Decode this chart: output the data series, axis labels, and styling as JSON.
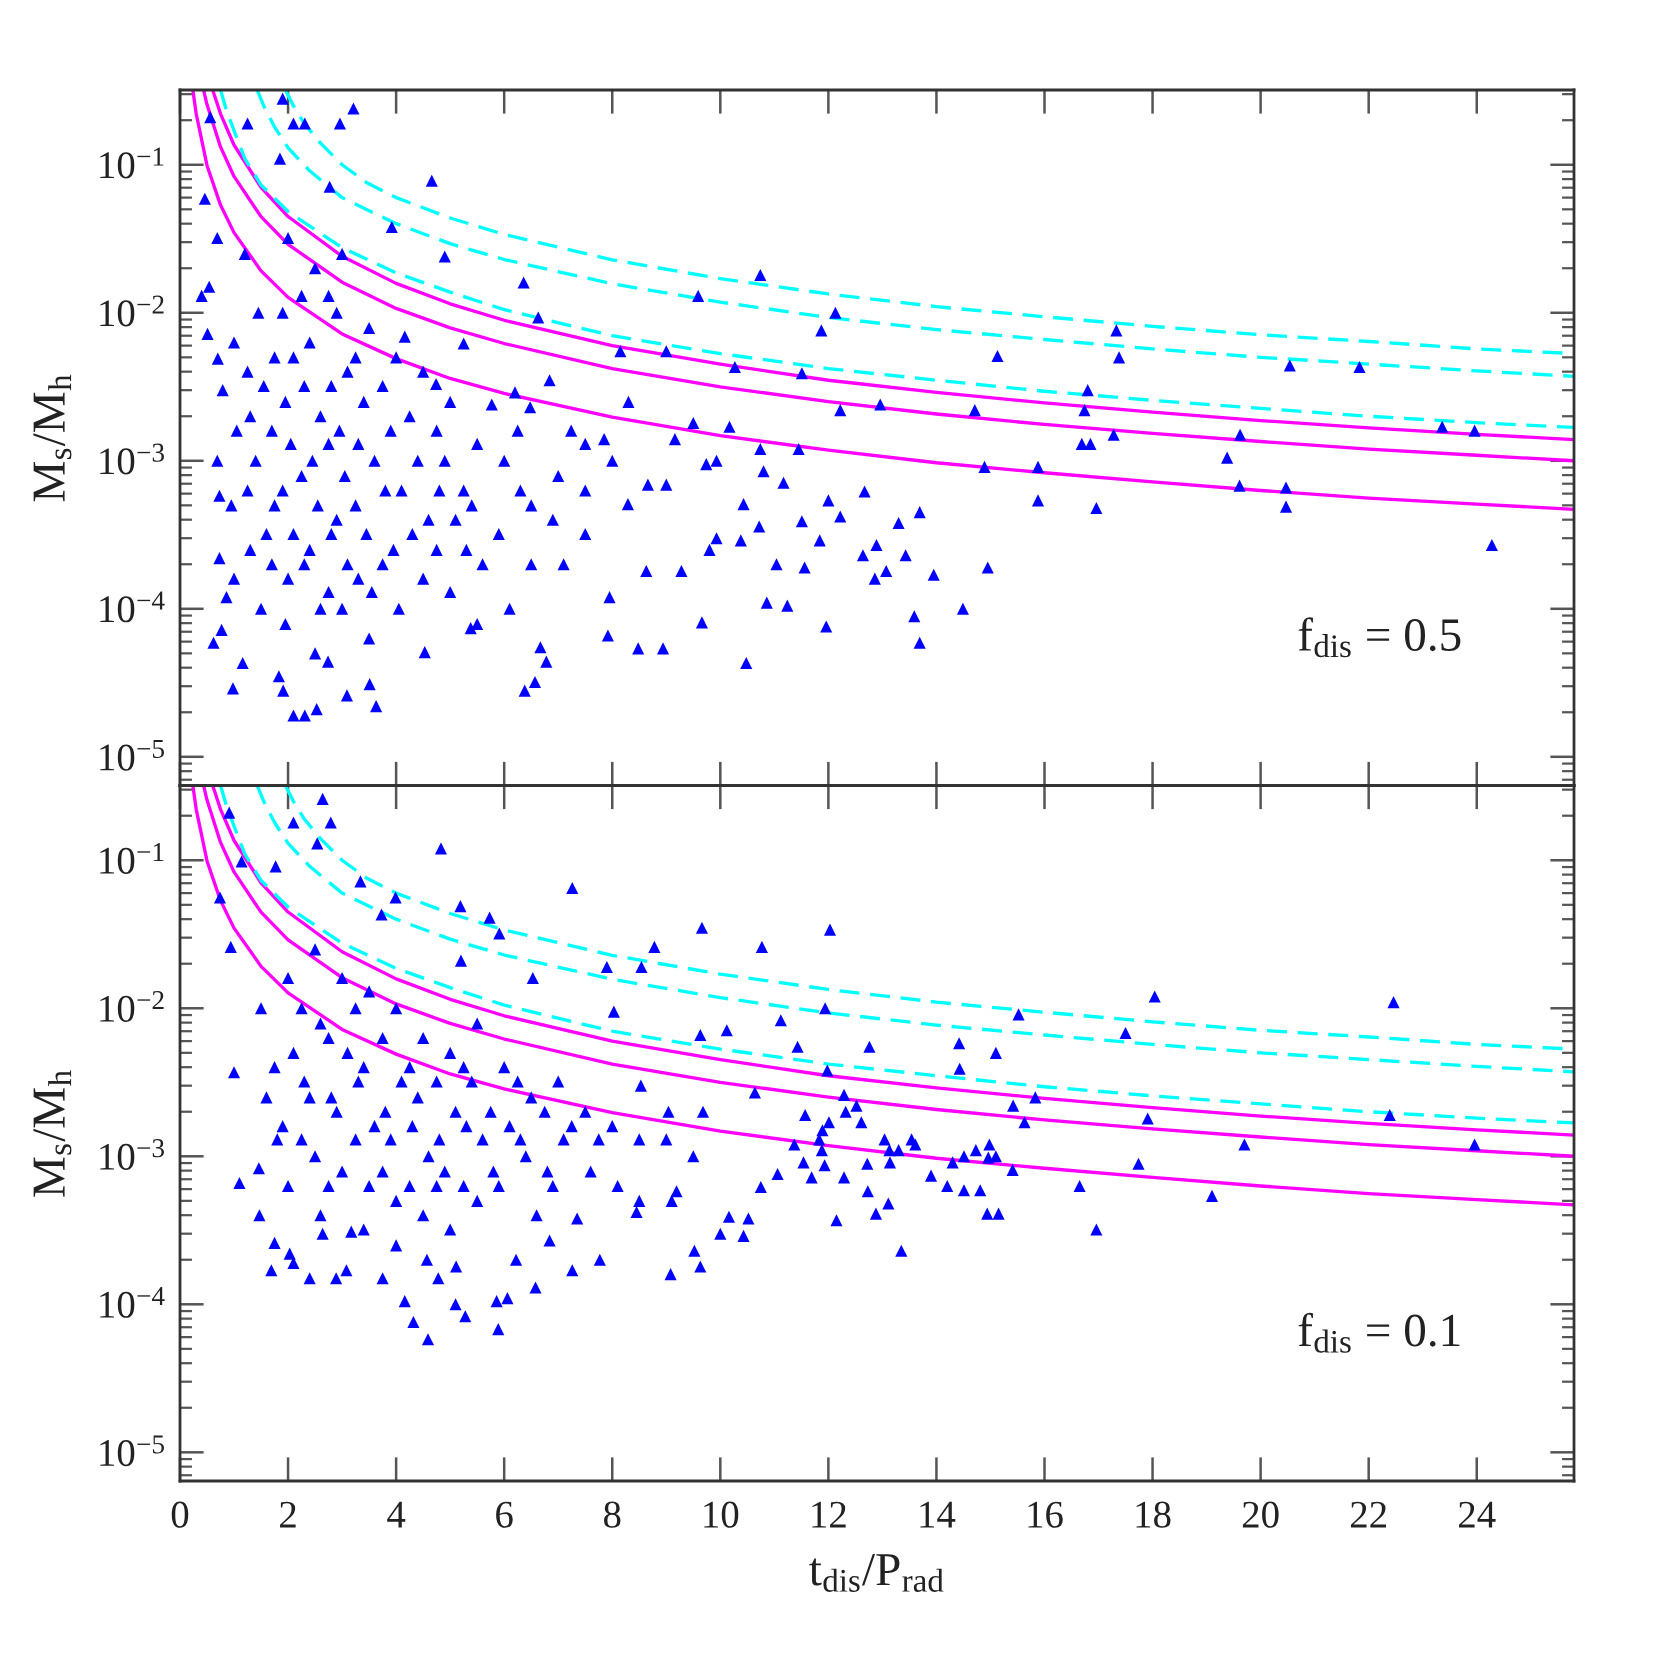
{
  "chart_data": [
    {
      "type": "scatter",
      "ylabel": "M$_{s}$/M$_{h}$",
      "annotations": [
        "f$_{dis}$ = 0.5"
      ],
      "xlim": [
        0,
        25.8
      ],
      "ylim": [
        6.4e-06,
        0.32
      ],
      "xticks": [
        0,
        2,
        4,
        6,
        8,
        10,
        12,
        14,
        16,
        18,
        20,
        22,
        24
      ],
      "yticks": [
        {
          "value": 1e-05,
          "label": "10$^{−5}$"
        },
        {
          "value": 0.0001,
          "label": "10$^{−4}$"
        },
        {
          "value": 0.001,
          "label": "10$^{−3}$"
        },
        {
          "value": 0.01,
          "label": "10$^{−2}$"
        },
        {
          "value": 0.1,
          "label": "10$^{−1}$"
        }
      ],
      "log": "y",
      "tick_labels": "y",
      "series": [
        {
          "color": "#0000ff",
          "marker": "triangle",
          "x": [
            12.13,
            11.87,
            11.51,
            12.22,
            12.96,
            15.13,
            14.71,
            17.33,
            17.38,
            16.8,
            16.74,
            17.28,
            16.69,
            16.85,
            20.54,
            21.83,
            23.36,
            23.96,
            19.62,
            19.38,
            19.61,
            20.47,
            20.47,
            24.28,
            14.89,
            15.88,
            15.88,
            16.96,
            12.0,
            12.67,
            12.22,
            11.51,
            11.84,
            12.89,
            12.64,
            13.3,
            13.69,
            13.43,
            13.07,
            12.86,
            13.95,
            14.95,
            11.56,
            13.59,
            13.69,
            14.49,
            11.96,
            11.45,
            1.9,
            3.21,
            2.1,
            2.31,
            2.96,
            0.56,
            1.25,
            4.66,
            2.77,
            1.85,
            0.46,
            0.4,
            0.51,
            4.9,
            3.92,
            6.36,
            6.63,
            10.74,
            9.59,
            10.27,
            9.0,
            8.3,
            10.17,
            9.5,
            10.74,
            8.15,
            6.84,
            6.2,
            5.25,
            4.16,
            4.74,
            5.77,
            6.48,
            7.24,
            7.85,
            9.16,
            9.74,
            9.93,
            10.8,
            11.17,
            10.43,
            10.72,
            10.38,
            11.04,
            10.86,
            11.24,
            10.48,
            9.66,
            8.94,
            8.48,
            9.28,
            9.93,
            9.8,
            8.63,
            9.0,
            8.29,
            8.66,
            7.95,
            7.92,
            6.78,
            6.38,
            6.57,
            6.67,
            5.38,
            4.53,
            3.63,
            3.51,
            3.09,
            2.74,
            2.53,
            2.31,
            2.1,
            1.91,
            1.83,
            1.16,
            0.98,
            0.62,
            0.77,
            0.86,
            0.73,
            0.69,
            0.73,
            0.79,
            0.7,
            0.69,
            0.54,
            1.45,
            1.55,
            1.4,
            1.6,
            1.5,
            2.0,
            1.9,
            2.1,
            1.95,
            2.05,
            1.9,
            2.1,
            2.0,
            1.95,
            2.5,
            2.4,
            2.6,
            2.45,
            2.55,
            2.4,
            2.6,
            2.5,
            3.0,
            2.9,
            3.1,
            2.95,
            3.05,
            2.9,
            3.1,
            3.0,
            3.5,
            3.4,
            3.6,
            3.45,
            3.55,
            3.5,
            4.0,
            3.9,
            4.1,
            3.95,
            4.05,
            4.5,
            4.4,
            4.6,
            4.5,
            5.0,
            4.9,
            5.1,
            5.0,
            5.5,
            5.4,
            5.6,
            6.0,
            5.9,
            6.1,
            7.0,
            6.9,
            7.1,
            1.0,
            1.05,
            0.95,
            1.0,
            1.2,
            6.5,
            7.5,
            8.0,
            5.5,
            1.25,
            1.3,
            1.25,
            1.3,
            1.75,
            1.7,
            1.75,
            1.7,
            2.25,
            2.3,
            2.25,
            2.3,
            2.75,
            2.8,
            2.75,
            2.8,
            2.75,
            3.25,
            3.3,
            3.25,
            3.3,
            3.75,
            3.8,
            3.75,
            4.25,
            4.3,
            4.75,
            4.8,
            4.75,
            5.25,
            5.3,
            6.25,
            6.3,
            6.5,
            7.5,
            7.5
          ],
          "values": [
            0.01,
            0.0076,
            0.0039,
            0.0022,
            0.0024,
            0.0051,
            0.0022,
            0.0076,
            0.005,
            0.003,
            0.0022,
            0.0015,
            0.0013,
            0.0013,
            0.0044,
            0.0043,
            0.0017,
            0.0016,
            0.0015,
            0.00105,
            0.00068,
            0.00066,
            0.00049,
            0.00027,
            0.00091,
            0.00091,
            0.00054,
            0.00048,
            0.00054,
            0.00062,
            0.00042,
            0.00039,
            0.00029,
            0.00027,
            0.00023,
            0.00038,
            0.00045,
            0.00023,
            0.00018,
            0.00016,
            0.00017,
            0.00019,
            0.00019,
            8.9e-05,
            5.9e-05,
            0.0001,
            7.6e-05,
            0.0012,
            0.28,
            0.24,
            0.19,
            0.19,
            0.19,
            0.21,
            0.19,
            0.078,
            0.071,
            0.11,
            0.059,
            0.013,
            0.0072,
            0.024,
            0.038,
            0.016,
            0.0093,
            0.018,
            0.013,
            0.0043,
            0.0055,
            0.0025,
            0.0017,
            0.0018,
            0.0012,
            0.0055,
            0.0035,
            0.0029,
            0.0062,
            0.0069,
            0.0033,
            0.0024,
            0.0023,
            0.0016,
            0.0014,
            0.0014,
            0.00095,
            0.001,
            0.00085,
            0.00071,
            0.00051,
            0.00036,
            0.00029,
            0.0002,
            0.00011,
            0.000105,
            4.3e-05,
            8.1e-05,
            5.4e-05,
            5.4e-05,
            0.00018,
            0.0003,
            0.00025,
            0.00018,
            0.00069,
            0.00051,
            0.00069,
            0.00012,
            6.6e-05,
            4.4e-05,
            2.8e-05,
            3.2e-05,
            5.5e-05,
            7.4e-05,
            5.1e-05,
            2.2e-05,
            3.1e-05,
            2.6e-05,
            4.4e-05,
            2.1e-05,
            1.9e-05,
            1.9e-05,
            2.8e-05,
            3.5e-05,
            4.3e-05,
            2.9e-05,
            5.9e-05,
            7.2e-05,
            0.00012,
            0.00022,
            0.001,
            0.00058,
            0.003,
            0.0049,
            0.032,
            0.015,
            0.01,
            0.0032,
            0.001,
            0.00032,
            0.0001,
            0.032,
            0.01,
            0.005,
            0.0025,
            0.0013,
            0.00063,
            0.00032,
            0.00016,
            7.9e-05,
            0.02,
            0.0063,
            0.002,
            0.001,
            0.0005,
            0.00025,
            0.0001,
            5e-05,
            0.025,
            0.01,
            0.004,
            0.0016,
            0.00079,
            0.0004,
            0.0002,
            0.0001,
            0.0079,
            0.0025,
            0.001,
            0.00032,
            0.00013,
            6.3e-05,
            0.005,
            0.0016,
            0.00063,
            0.00025,
            0.0001,
            0.004,
            0.001,
            0.0004,
            0.00016,
            0.0025,
            0.001,
            0.0004,
            0.00013,
            0.0013,
            0.0005,
            0.0002,
            0.001,
            0.00032,
            0.0001,
            0.00079,
            0.0004,
            0.0002,
            0.0063,
            0.0016,
            0.0005,
            0.00016,
            0.025,
            0.0005,
            0.00032,
            0.001,
            7.9e-05,
            0.004,
            0.002,
            0.00063,
            0.00025,
            0.005,
            0.0016,
            0.0005,
            0.0002,
            0.013,
            0.0032,
            0.00079,
            0.0002,
            0.013,
            0.0032,
            0.0013,
            0.00032,
            0.00013,
            0.005,
            0.0013,
            0.0005,
            0.00016,
            0.0032,
            0.00063,
            0.0002,
            0.002,
            0.00032,
            0.0016,
            0.00063,
            0.00025,
            0.00063,
            0.00025,
            0.0016,
            0.00063,
            0.0002,
            0.0013,
            0.00063
          ]
        },
        {
          "type": "line",
          "color": "#ff00ff",
          "line_style": "solid",
          "x": [
            0.61,
            0.75,
            1,
            1.5,
            2,
            3,
            4,
            5,
            6,
            8,
            10,
            12,
            14,
            16,
            18,
            20,
            22,
            24,
            25.8
          ],
          "values": [
            0.316,
            0.221,
            0.136,
            0.0704,
            0.0447,
            0.0241,
            0.0158,
            0.0115,
            0.0089,
            0.006,
            0.0045,
            0.0035,
            0.0029,
            0.00246,
            0.00213,
            0.00187,
            0.00167,
            0.00151,
            0.00139
          ]
        },
        {
          "type": "line",
          "color": "#ff00ff",
          "line_style": "solid",
          "x": [
            0.44,
            0.5,
            0.75,
            1,
            1.5,
            2,
            3,
            4,
            5,
            6,
            8,
            10,
            12,
            14,
            16,
            18,
            20,
            22,
            24,
            25.8
          ],
          "values": [
            0.316,
            0.255,
            0.132,
            0.0834,
            0.0446,
            0.029,
            0.0161,
            0.0107,
            0.0079,
            0.0062,
            0.0042,
            0.00316,
            0.00251,
            0.00207,
            0.00176,
            0.00153,
            0.00135,
            0.0012,
            0.00109,
            0.001
          ]
        },
        {
          "type": "line",
          "color": "#ff00ff",
          "line_style": "solid",
          "x": [
            0.24,
            0.3,
            0.5,
            0.75,
            1,
            1.5,
            2,
            3,
            4,
            5,
            6,
            8,
            10,
            12,
            14,
            16,
            18,
            20,
            22,
            24,
            25.8
          ],
          "values": [
            0.316,
            0.221,
            0.099,
            0.0534,
            0.0348,
            0.0192,
            0.0127,
            0.0072,
            0.0049,
            0.0036,
            0.00285,
            0.00197,
            0.00148,
            0.00118,
            0.00097,
            0.00083,
            0.00072,
            0.00063,
            0.00056,
            0.00051,
            0.00047
          ]
        },
        {
          "type": "line",
          "color": "#00ffff",
          "line_style": "dashed",
          "x": [
            1.95,
            2.1,
            2.3,
            2.6,
            3.0,
            3.45,
            4,
            5,
            6,
            8,
            10,
            12,
            14,
            16,
            18,
            20,
            22,
            24,
            25.8
          ],
          "values": [
            0.32,
            0.25,
            0.19,
            0.14,
            0.1,
            0.076,
            0.06,
            0.0437,
            0.0338,
            0.0228,
            0.017,
            0.0134,
            0.011,
            0.0094,
            0.0081,
            0.0071,
            0.0064,
            0.0057,
            0.0053
          ]
        },
        {
          "type": "line",
          "color": "#00ffff",
          "line_style": "dashed",
          "x": [
            1.43,
            1.55,
            1.75,
            2.0,
            2.4,
            3,
            4,
            5,
            6,
            8,
            10,
            12,
            14,
            16,
            18,
            20,
            22,
            24,
            25.8
          ],
          "values": [
            0.32,
            0.25,
            0.18,
            0.13,
            0.091,
            0.06,
            0.04,
            0.0293,
            0.0229,
            0.0157,
            0.0118,
            0.0093,
            0.0077,
            0.0066,
            0.0057,
            0.005,
            0.0045,
            0.00405,
            0.00372
          ]
        },
        {
          "type": "line",
          "color": "#00ffff",
          "line_style": "dashed",
          "x": [
            0.75,
            0.85,
            1.0,
            1.2,
            1.5,
            2,
            3,
            4,
            5,
            6,
            8,
            10,
            12,
            14,
            16,
            18,
            20,
            22,
            24,
            25.8
          ],
          "values": [
            0.32,
            0.24,
            0.17,
            0.11,
            0.073,
            0.0483,
            0.0275,
            0.0186,
            0.0138,
            0.0105,
            0.007,
            0.0053,
            0.0042,
            0.0035,
            0.00295,
            0.00256,
            0.00226,
            0.002,
            0.00181,
            0.00168
          ]
        }
      ]
    },
    {
      "type": "scatter",
      "xlabel": "t$_{dis}$/P$_{rad}$",
      "ylabel": "M$_{s}$/M$_{h}$",
      "annotations": [
        "f$_{dis}$ = 0.1"
      ],
      "xlim": [
        0,
        25.8
      ],
      "ylim": [
        6.4e-06,
        0.32
      ],
      "xticks": [
        0,
        2,
        4,
        6,
        8,
        10,
        12,
        14,
        16,
        18,
        20,
        22,
        24
      ],
      "yticks": [
        {
          "value": 1e-05,
          "label": "10$^{−5}$"
        },
        {
          "value": 0.0001,
          "label": "10$^{−4}$"
        },
        {
          "value": 0.001,
          "label": "10$^{−3}$"
        },
        {
          "value": 0.01,
          "label": "10$^{−2}$"
        },
        {
          "value": 0.1,
          "label": "10$^{−1}$"
        }
      ],
      "log": "y",
      "series": [
        {
          "color": "#0000ff",
          "marker": "triangle",
          "x": [
            12.03,
            18.04,
            22.46,
            11.94,
            15.52,
            17.5,
            11.43,
            12.76,
            14.42,
            15.1,
            14.43,
            11.98,
            12.29,
            11.57,
            12.32,
            12.52,
            12.61,
            11.89,
            12.01,
            15.42,
            15.83,
            15.63,
            17.91,
            22.39,
            19.7,
            23.96,
            11.37,
            11.83,
            11.88,
            11.54,
            11.93,
            11.69,
            12.29,
            13.04,
            13.13,
            13.14,
            12.72,
            13.3,
            13.54,
            13.61,
            13.9,
            14.2,
            14.3,
            14.51,
            14.73,
            14.98,
            14.96,
            15.1,
            15.41,
            14.51,
            14.81,
            12.73,
            13.11,
            12.88,
            12.15,
            14.94,
            15.15,
            13.35,
            16.65,
            16.96,
            17.74,
            19.1,
            2.64,
            2.1,
            2.79,
            0.91,
            2.54,
            4.83,
            1.14,
            1.77,
            3.34,
            7.26,
            9.66,
            10.77,
            8.78,
            0.74,
            3.99,
            5.19,
            5.73,
            0.94,
            1.0,
            1.1,
            1.46,
            1.47,
            1.69,
            2.1,
            2.4,
            2.89,
            3.08,
            3.75,
            4.16,
            4.32,
            4.59,
            4.78,
            5.1,
            5.28,
            5.89,
            5.86,
            6.06,
            6.58,
            7.26,
            7.77,
            9.08,
            9.63,
            9.52,
            10.0,
            10.43,
            10.52,
            10.16,
            10.75,
            11.06,
            11.12,
            10.12,
            9.63,
            8.53,
            9.04,
            9.68,
            10.64,
            8.03,
            8.54,
            7.9,
            6.53,
            5.91,
            5.2,
            3.73,
            2.64,
            1.75,
            2.03,
            3.17,
            4.0,
            4.57,
            5.11,
            6.22,
            6.84,
            7.35,
            8.45,
            9.19,
            1.5,
            1.6,
            2.0,
            2.1,
            1.9,
            2.0,
            2.5,
            2.6,
            2.4,
            2.5,
            2.6,
            3.0,
            3.1,
            2.9,
            3.0,
            3.5,
            3.4,
            3.6,
            3.5,
            3.4,
            4.0,
            4.1,
            3.9,
            4.0,
            4.5,
            4.4,
            4.6,
            4.5,
            5.0,
            5.1,
            4.9,
            5.0,
            5.5,
            5.4,
            5.6,
            5.5,
            6.0,
            6.1,
            5.9,
            6.5,
            6.4,
            6.6,
            7.0,
            7.1,
            6.9,
            7.5,
            7.6,
            8.0,
            8.1,
            9.0,
            9.1,
            1.75,
            1.8,
            2.25,
            2.3,
            2.25,
            2.75,
            2.8,
            2.75,
            3.25,
            3.3,
            3.25,
            3.75,
            3.8,
            3.75,
            4.25,
            4.3,
            4.25,
            4.75,
            4.8,
            4.75,
            5.25,
            5.3,
            5.25,
            5.75,
            5.8,
            6.25,
            6.3,
            6.75,
            6.8,
            7.25,
            7.75,
            8.5,
            8.5,
            9.5
          ],
          "values": [
            0.034,
            0.012,
            0.011,
            0.01,
            0.0091,
            0.0068,
            0.0055,
            0.0055,
            0.0058,
            0.005,
            0.0039,
            0.0038,
            0.0026,
            0.0019,
            0.002,
            0.0022,
            0.0017,
            0.0015,
            0.0017,
            0.0022,
            0.0025,
            0.0017,
            0.0018,
            0.0019,
            0.0012,
            0.0012,
            0.0012,
            0.0013,
            0.0011,
            0.00091,
            0.00087,
            0.00072,
            0.00072,
            0.0013,
            0.0011,
            0.00091,
            0.00089,
            0.0011,
            0.0013,
            0.0012,
            0.00074,
            0.00063,
            0.00091,
            0.001,
            0.0011,
            0.0012,
            0.00098,
            0.001,
            0.00081,
            0.00059,
            0.00059,
            0.00058,
            0.00048,
            0.00041,
            0.00037,
            0.00041,
            0.00041,
            0.00023,
            0.00063,
            0.00032,
            0.00089,
            0.00054,
            0.26,
            0.18,
            0.18,
            0.21,
            0.13,
            0.12,
            0.098,
            0.091,
            0.072,
            0.065,
            0.035,
            0.026,
            0.026,
            0.056,
            0.056,
            0.049,
            0.041,
            0.026,
            0.0037,
            0.00066,
            0.00083,
            0.0004,
            0.00017,
            0.00019,
            0.00015,
            0.00015,
            0.00017,
            0.00015,
            0.000105,
            7.6e-05,
            5.8e-05,
            0.00015,
            0.0001,
            8.3e-05,
            6.8e-05,
            0.000105,
            0.00011,
            0.00013,
            0.00017,
            0.0002,
            0.00016,
            0.00018,
            0.00023,
            0.0003,
            0.00029,
            0.00038,
            0.00039,
            0.00062,
            0.00076,
            0.0083,
            0.0071,
            0.0066,
            0.003,
            0.002,
            0.002,
            0.0027,
            0.0095,
            0.019,
            0.019,
            0.016,
            0.032,
            0.021,
            0.043,
            0.0003,
            0.00026,
            0.00022,
            0.00031,
            0.00025,
            0.0002,
            0.00018,
            0.0002,
            0.00027,
            0.00038,
            0.00042,
            0.00058,
            0.01,
            0.0025,
            0.016,
            0.005,
            0.0016,
            0.00063,
            0.025,
            0.0079,
            0.0025,
            0.001,
            0.0004,
            0.016,
            0.005,
            0.002,
            0.00079,
            0.013,
            0.004,
            0.0016,
            0.00063,
            0.00032,
            0.01,
            0.0032,
            0.0013,
            0.0005,
            0.0063,
            0.0025,
            0.001,
            0.0004,
            0.005,
            0.002,
            0.00079,
            0.00032,
            0.0079,
            0.0032,
            0.0013,
            0.0005,
            0.004,
            0.0016,
            0.00063,
            0.0025,
            0.001,
            0.0004,
            0.0032,
            0.0013,
            0.00063,
            0.002,
            0.00079,
            0.0016,
            0.00063,
            0.0013,
            0.0005,
            0.004,
            0.0013,
            0.01,
            0.0032,
            0.0013,
            0.0063,
            0.0025,
            0.00063,
            0.01,
            0.0032,
            0.0013,
            0.0063,
            0.002,
            0.00079,
            0.004,
            0.0016,
            0.00063,
            0.0032,
            0.0013,
            0.00063,
            0.004,
            0.0016,
            0.00063,
            0.002,
            0.00079,
            0.0032,
            0.0013,
            0.002,
            0.00079,
            0.0016,
            0.0013,
            0.0013,
            0.0005,
            0.001
          ]
        },
        {
          "type": "line",
          "color": "#ff00ff",
          "line_style": "solid",
          "x": [
            0.61,
            0.75,
            1,
            1.5,
            2,
            3,
            4,
            5,
            6,
            8,
            10,
            12,
            14,
            16,
            18,
            20,
            22,
            24,
            25.8
          ],
          "values": [
            0.316,
            0.221,
            0.136,
            0.0704,
            0.0447,
            0.0241,
            0.0158,
            0.0115,
            0.0089,
            0.006,
            0.0045,
            0.0035,
            0.0029,
            0.00246,
            0.00213,
            0.00187,
            0.00167,
            0.00151,
            0.00139
          ]
        },
        {
          "type": "line",
          "color": "#ff00ff",
          "line_style": "solid",
          "x": [
            0.44,
            0.5,
            0.75,
            1,
            1.5,
            2,
            3,
            4,
            5,
            6,
            8,
            10,
            12,
            14,
            16,
            18,
            20,
            22,
            24,
            25.8
          ],
          "values": [
            0.316,
            0.255,
            0.132,
            0.0834,
            0.0446,
            0.029,
            0.0161,
            0.0107,
            0.0079,
            0.0062,
            0.0042,
            0.00316,
            0.00251,
            0.00207,
            0.00176,
            0.00153,
            0.00135,
            0.0012,
            0.00109,
            0.001
          ]
        },
        {
          "type": "line",
          "color": "#ff00ff",
          "line_style": "solid",
          "x": [
            0.24,
            0.3,
            0.5,
            0.75,
            1,
            1.5,
            2,
            3,
            4,
            5,
            6,
            8,
            10,
            12,
            14,
            16,
            18,
            20,
            22,
            24,
            25.8
          ],
          "values": [
            0.316,
            0.221,
            0.099,
            0.0534,
            0.0348,
            0.0192,
            0.0127,
            0.0072,
            0.0049,
            0.0036,
            0.00285,
            0.00197,
            0.00148,
            0.00118,
            0.00097,
            0.00083,
            0.00072,
            0.00063,
            0.00056,
            0.00051,
            0.00047
          ]
        },
        {
          "type": "line",
          "color": "#00ffff",
          "line_style": "dashed",
          "x": [
            1.95,
            2.1,
            2.3,
            2.6,
            3.0,
            3.45,
            4,
            5,
            6,
            8,
            10,
            12,
            14,
            16,
            18,
            20,
            22,
            24,
            25.8
          ],
          "values": [
            0.32,
            0.25,
            0.19,
            0.14,
            0.1,
            0.076,
            0.06,
            0.0437,
            0.0338,
            0.0228,
            0.017,
            0.0134,
            0.011,
            0.0094,
            0.0081,
            0.0071,
            0.0064,
            0.0057,
            0.0053
          ]
        },
        {
          "type": "line",
          "color": "#00ffff",
          "line_style": "dashed",
          "x": [
            1.43,
            1.55,
            1.75,
            2.0,
            2.4,
            3,
            4,
            5,
            6,
            8,
            10,
            12,
            14,
            16,
            18,
            20,
            22,
            24,
            25.8
          ],
          "values": [
            0.32,
            0.25,
            0.18,
            0.13,
            0.091,
            0.06,
            0.04,
            0.0293,
            0.0229,
            0.0157,
            0.0118,
            0.0093,
            0.0077,
            0.0066,
            0.0057,
            0.005,
            0.0045,
            0.00405,
            0.00372
          ]
        },
        {
          "type": "line",
          "color": "#00ffff",
          "line_style": "dashed",
          "x": [
            0.75,
            0.85,
            1.0,
            1.2,
            1.5,
            2,
            3,
            4,
            5,
            6,
            8,
            10,
            12,
            14,
            16,
            18,
            20,
            22,
            24,
            25.8
          ],
          "values": [
            0.32,
            0.24,
            0.17,
            0.11,
            0.073,
            0.0483,
            0.0275,
            0.0186,
            0.0138,
            0.0105,
            0.007,
            0.0053,
            0.0042,
            0.0035,
            0.00295,
            0.00256,
            0.00226,
            0.002,
            0.00181,
            0.00168
          ]
        }
      ]
    }
  ]
}
